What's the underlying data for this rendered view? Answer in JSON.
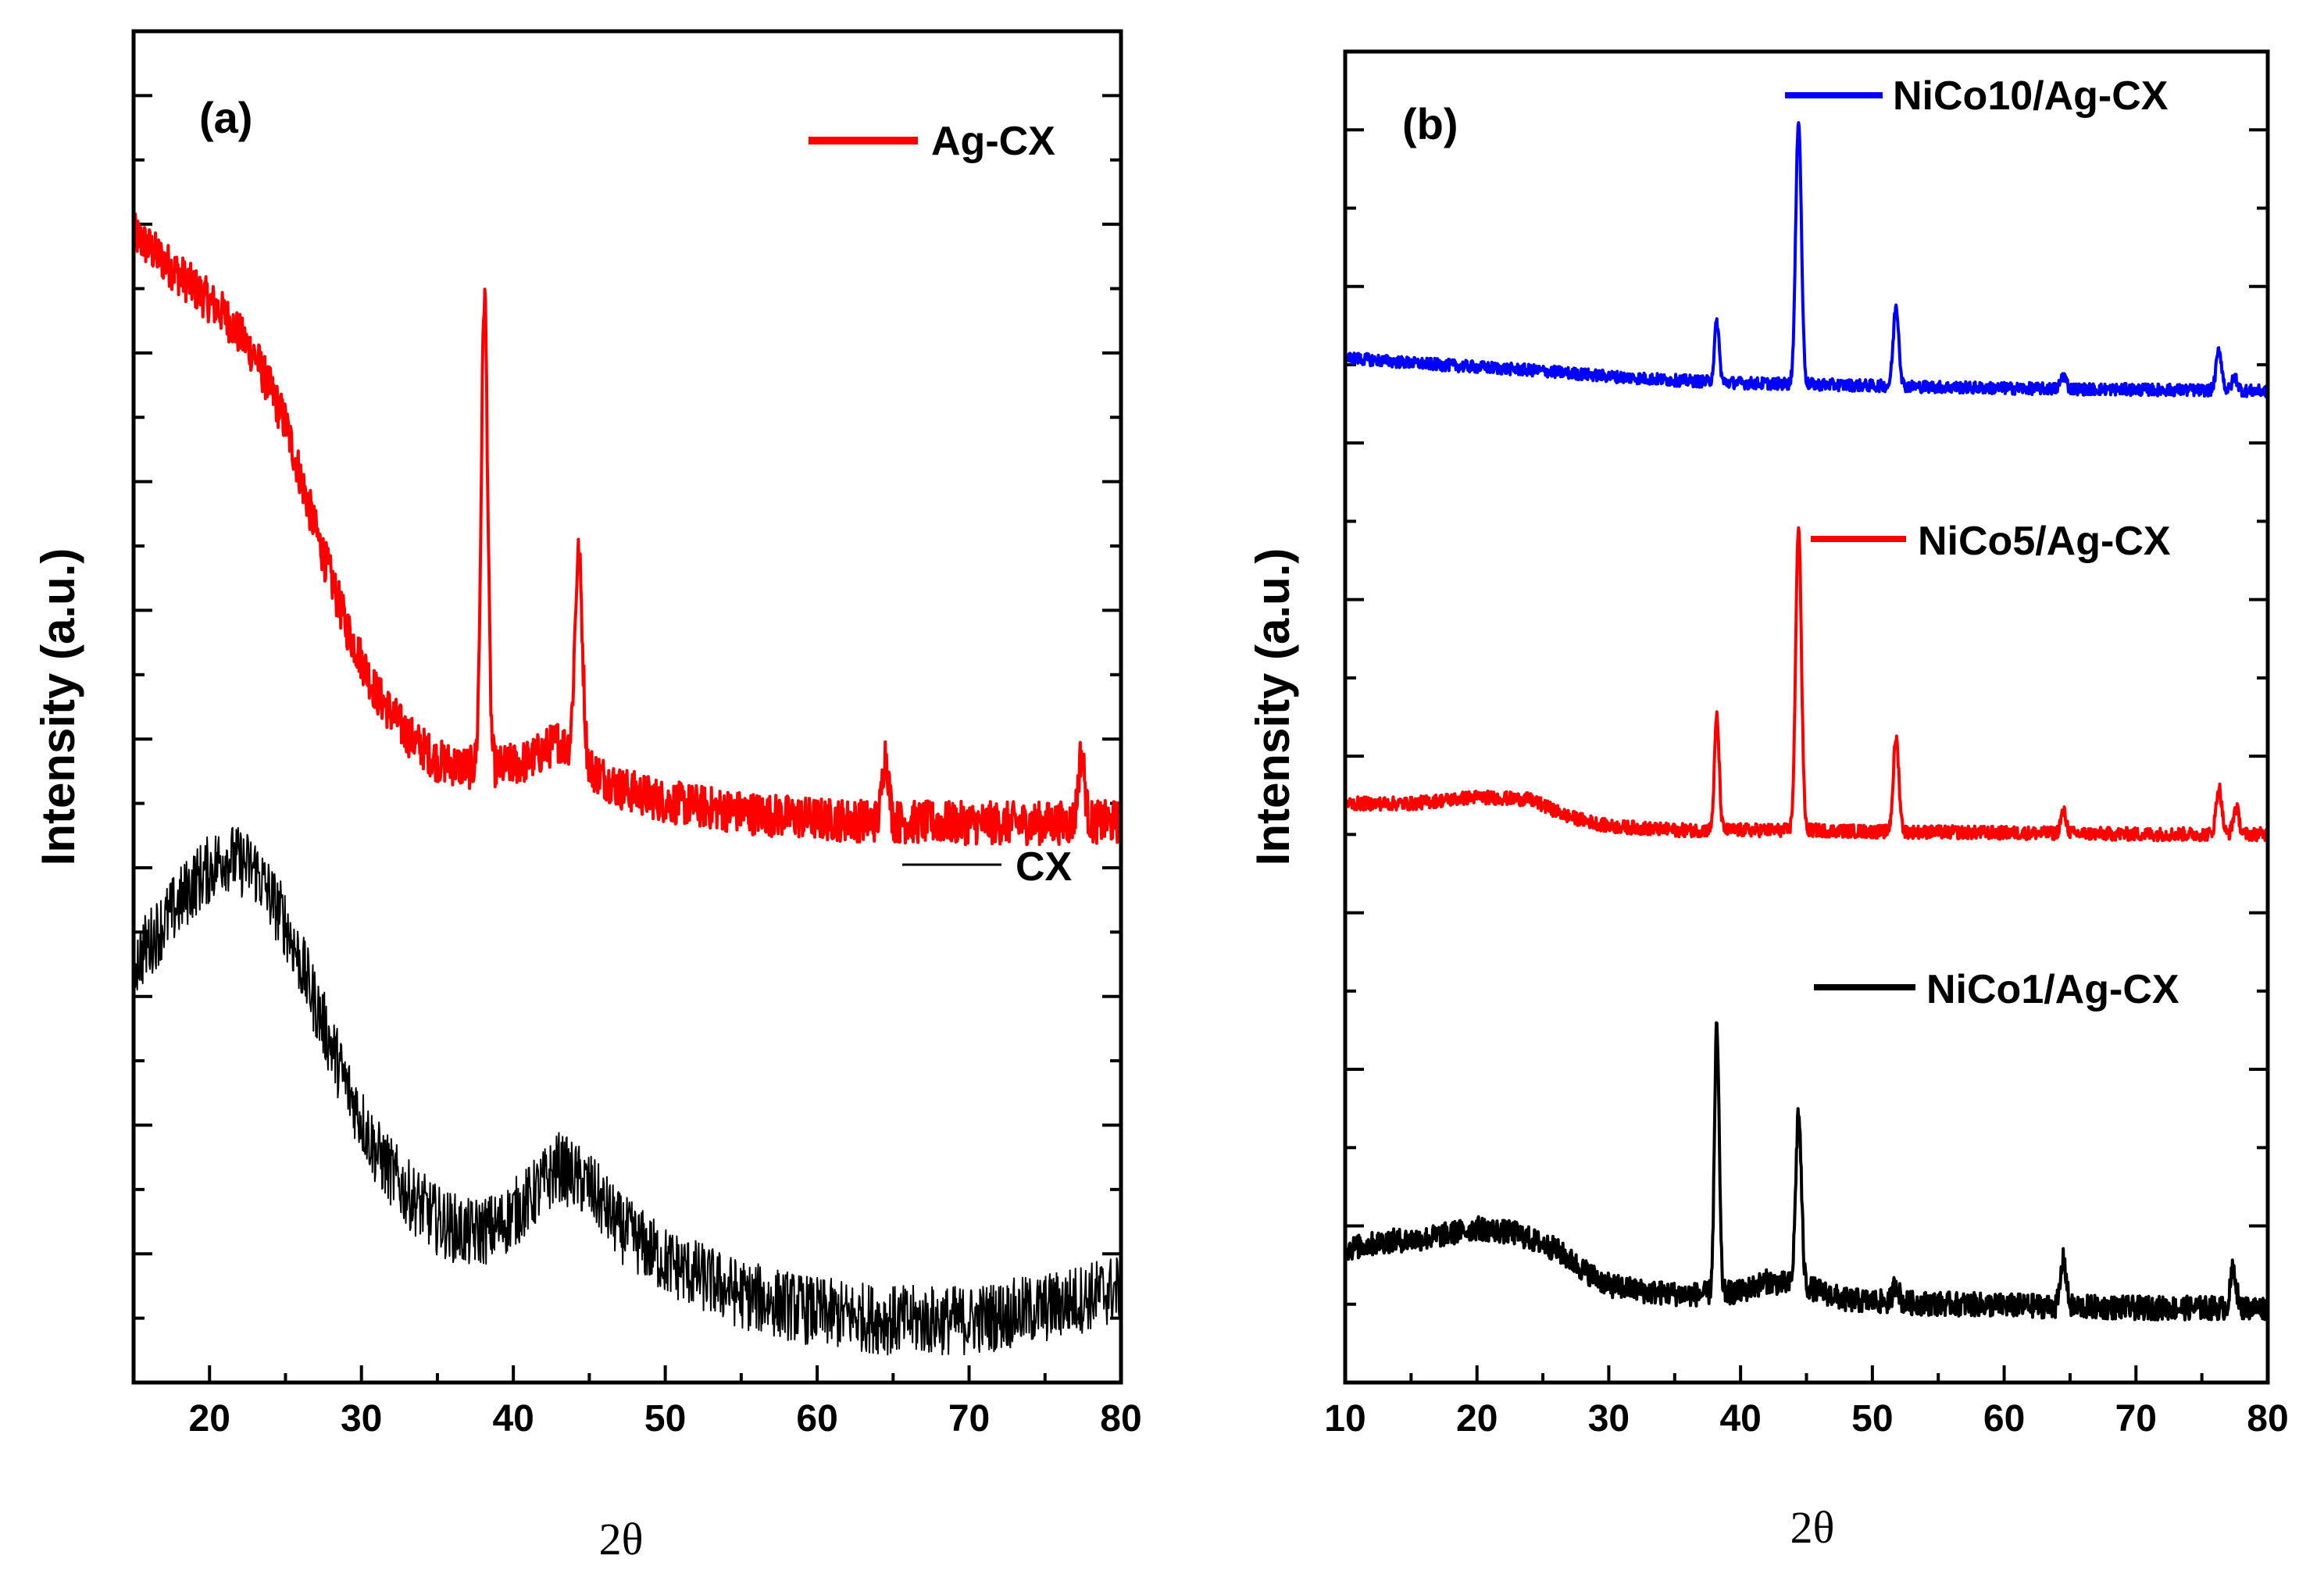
{
  "chart_data": [
    {
      "id": "a",
      "type": "line",
      "panel_label": "(a)",
      "xlabel": "2θ",
      "ylabel": "Intensity (a.u.)",
      "xlim": [
        15,
        80
      ],
      "ylim": [
        0,
        100
      ],
      "xticks": [
        20,
        30,
        40,
        50,
        60,
        70,
        80
      ],
      "yticks": [],
      "series": [
        {
          "name": "Ag-CX",
          "color": "#ff0000",
          "noise": 1.6,
          "baseline": [
            [
              15,
              85
            ],
            [
              18,
              82
            ],
            [
              21,
              79
            ],
            [
              23,
              76
            ],
            [
              25,
              71
            ],
            [
              27,
              63
            ],
            [
              29,
              56
            ],
            [
              31,
              51
            ],
            [
              33,
              48
            ],
            [
              35,
              46
            ],
            [
              37,
              45.5
            ],
            [
              39,
              45.5
            ],
            [
              41,
              46
            ],
            [
              43,
              47.5
            ],
            [
              45,
              45.5
            ],
            [
              47,
              44
            ],
            [
              50,
              43
            ],
            [
              55,
              42.2
            ],
            [
              60,
              41.7
            ],
            [
              65,
              41.5
            ],
            [
              70,
              41.4
            ],
            [
              75,
              41.4
            ],
            [
              80,
              41.5
            ]
          ],
          "peaks": [
            {
              "x": 38.1,
              "h": 35,
              "w": 0.3
            },
            {
              "x": 44.3,
              "h": 15,
              "w": 0.35
            },
            {
              "x": 64.5,
              "h": 5,
              "w": 0.3
            },
            {
              "x": 77.4,
              "h": 5,
              "w": 0.3
            }
          ]
        },
        {
          "name": "CX",
          "color": "#000000",
          "noise": 2.6,
          "baseline": [
            [
              15,
              31
            ],
            [
              17,
              34
            ],
            [
              19,
              37
            ],
            [
              21,
              39
            ],
            [
              23,
              38
            ],
            [
              25,
              34
            ],
            [
              27,
              28
            ],
            [
              29,
              22
            ],
            [
              31,
              17
            ],
            [
              33,
              14
            ],
            [
              35,
              12
            ],
            [
              37,
              11
            ],
            [
              39,
              11.5
            ],
            [
              41,
              13.5
            ],
            [
              43,
              16
            ],
            [
              45,
              14.5
            ],
            [
              47,
              11.5
            ],
            [
              50,
              9
            ],
            [
              55,
              6.5
            ],
            [
              60,
              5.2
            ],
            [
              65,
              4.6
            ],
            [
              70,
              4.6
            ],
            [
              75,
              5.5
            ],
            [
              80,
              7
            ]
          ],
          "peaks": []
        }
      ]
    },
    {
      "id": "b",
      "type": "line",
      "panel_label": "(b)",
      "xlabel": "2θ",
      "ylabel": "Intensity (a.u.)",
      "xlim": [
        10,
        80
      ],
      "ylim": [
        0,
        100
      ],
      "xticks": [
        10,
        20,
        30,
        40,
        50,
        60,
        70,
        80
      ],
      "yticks": [],
      "series": [
        {
          "name": "NiCo10/Ag-CX",
          "color": "#0000ff",
          "noise": 0.45,
          "baseline": [
            [
              10,
              77
            ],
            [
              15,
              76.6
            ],
            [
              20,
              76.3
            ],
            [
              25,
              76
            ],
            [
              30,
              75.6
            ],
            [
              35,
              75.3
            ],
            [
              40,
              75.1
            ],
            [
              45,
              75
            ],
            [
              50,
              74.9
            ],
            [
              60,
              74.7
            ],
            [
              70,
              74.6
            ],
            [
              80,
              74.5
            ]
          ],
          "peaks": [
            {
              "x": 38.2,
              "h": 4.5,
              "w": 0.25
            },
            {
              "x": 44.4,
              "h": 20,
              "w": 0.3
            },
            {
              "x": 51.8,
              "h": 6,
              "w": 0.3
            },
            {
              "x": 64.5,
              "h": 1,
              "w": 0.3
            },
            {
              "x": 76.3,
              "h": 3,
              "w": 0.3
            },
            {
              "x": 77.5,
              "h": 1,
              "w": 0.3
            }
          ]
        },
        {
          "name": "NiCo5/Ag-CX",
          "color": "#ff0000",
          "noise": 0.5,
          "baseline": [
            [
              10,
              43.5
            ],
            [
              15,
              43.5
            ],
            [
              20,
              44
            ],
            [
              24,
              43.8
            ],
            [
              27,
              42.5
            ],
            [
              30,
              41.8
            ],
            [
              35,
              41.5
            ],
            [
              40,
              41.5
            ],
            [
              45,
              41.5
            ],
            [
              50,
              41.4
            ],
            [
              60,
              41.3
            ],
            [
              70,
              41.2
            ],
            [
              80,
              41.2
            ]
          ],
          "peaks": [
            {
              "x": 38.2,
              "h": 8.5,
              "w": 0.25
            },
            {
              "x": 44.4,
              "h": 23,
              "w": 0.3
            },
            {
              "x": 51.8,
              "h": 7,
              "w": 0.3
            },
            {
              "x": 64.5,
              "h": 1.6,
              "w": 0.3
            },
            {
              "x": 76.3,
              "h": 3.5,
              "w": 0.3
            },
            {
              "x": 77.6,
              "h": 2,
              "w": 0.3
            }
          ]
        },
        {
          "name": "NiCo1/Ag-CX",
          "color": "#000000",
          "noise": 0.9,
          "baseline": [
            [
              10,
              10
            ],
            [
              13,
              10.6
            ],
            [
              16,
              10.8
            ],
            [
              20,
              11.6
            ],
            [
              23,
              11.2
            ],
            [
              26,
              10
            ],
            [
              28,
              8.5
            ],
            [
              30,
              7.3
            ],
            [
              33,
              6.8
            ],
            [
              36,
              6.6
            ],
            [
              40,
              6.8
            ],
            [
              42,
              7.6
            ],
            [
              45,
              7.2
            ],
            [
              48,
              6.2
            ],
            [
              52,
              6
            ],
            [
              60,
              5.8
            ],
            [
              70,
              5.6
            ],
            [
              80,
              5.6
            ]
          ],
          "peaks": [
            {
              "x": 38.2,
              "h": 20,
              "w": 0.25
            },
            {
              "x": 44.4,
              "h": 13,
              "w": 0.3
            },
            {
              "x": 51.8,
              "h": 1.5,
              "w": 0.3
            },
            {
              "x": 64.5,
              "h": 3.5,
              "w": 0.3
            },
            {
              "x": 77.4,
              "h": 3,
              "w": 0.3
            }
          ]
        }
      ]
    }
  ]
}
